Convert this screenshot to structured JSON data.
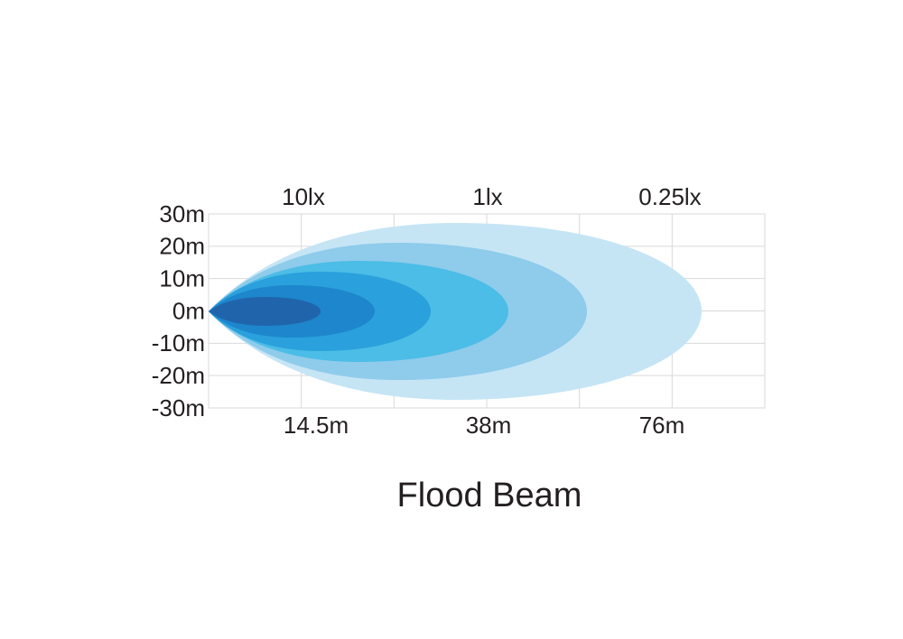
{
  "y_axis": {
    "labels": [
      "30m",
      "20m",
      "10m",
      "0m",
      "-10m",
      "-20m",
      "-30m"
    ]
  },
  "top_labels": [
    "10lx",
    "1lx",
    "0.25lx"
  ],
  "bottom_labels": [
    "14.5m",
    "38m",
    "76m"
  ],
  "title": "Flood Beam"
}
